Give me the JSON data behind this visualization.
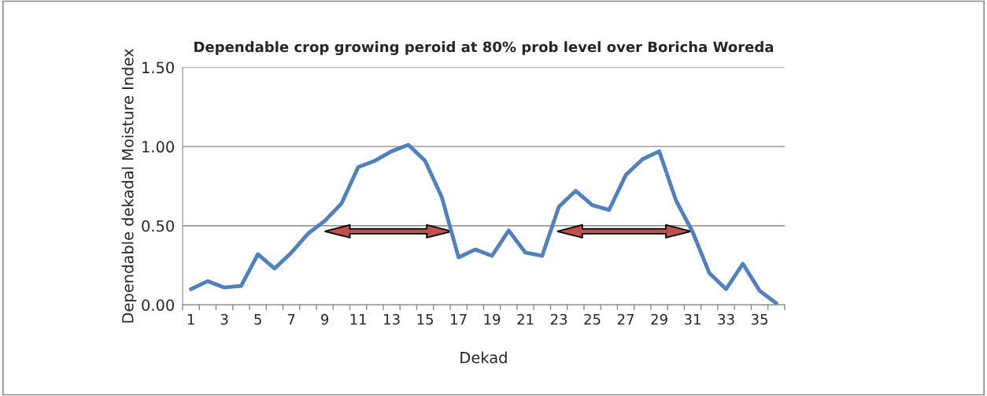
{
  "chart_data": {
    "type": "line",
    "title": "Dependable crop growing peroid at 80% prob level over Boricha Woreda",
    "xlabel": "Dekad",
    "ylabel": "Dependable dekadal Moisture Index",
    "categories": [
      "1",
      null,
      "3",
      null,
      "5",
      null,
      "7",
      null,
      "9",
      null,
      "11",
      null,
      "13",
      null,
      "15",
      null,
      "17",
      null,
      "19",
      null,
      "21",
      null,
      "23",
      null,
      "25",
      null,
      "27",
      null,
      "29",
      null,
      "31",
      null,
      "33",
      null,
      "35",
      null
    ],
    "series": [
      {
        "color": "#4f81bd",
        "values": [
          0.1,
          0.15,
          0.11,
          0.12,
          0.32,
          0.23,
          0.33,
          0.45,
          0.53,
          0.64,
          0.87,
          0.91,
          0.97,
          1.01,
          0.91,
          0.68,
          0.3,
          0.35,
          0.31,
          0.47,
          0.33,
          0.31,
          0.62,
          0.72,
          0.63,
          0.6,
          0.82,
          0.92,
          0.97,
          0.66,
          0.46,
          0.2,
          0.1,
          0.26,
          0.09,
          0.01
        ]
      }
    ],
    "ylim": [
      0,
      1.5
    ],
    "yticks": [
      {
        "value": 0,
        "label": "0.00"
      },
      {
        "value": 0.5,
        "label": "0.50"
      },
      {
        "value": 1.0,
        "label": "1.00"
      },
      {
        "value": 1.5,
        "label": "1.50"
      }
    ],
    "grid": "y",
    "marker": "none",
    "line_style": "solid"
  }
}
